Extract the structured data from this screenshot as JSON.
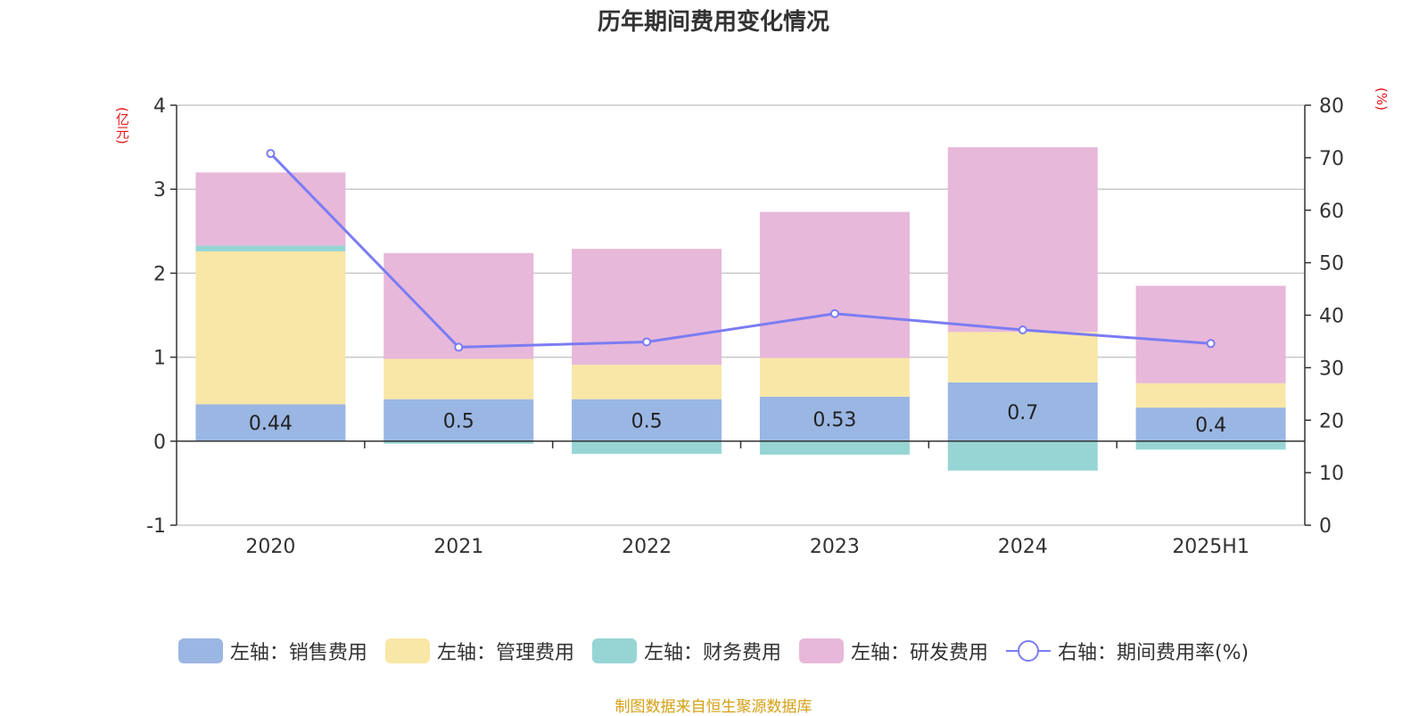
{
  "title": "历年期间费用变化情况",
  "units": {
    "left": "(亿元)",
    "right": "(%)"
  },
  "source": "制图数据来自恒生聚源数据库",
  "colors": {
    "sales": "#9ab6e3",
    "admin": "#f8e7a6",
    "finance": "#97d5d5",
    "rd": "#e7b8da",
    "rate": "#7b7cf3",
    "grid": "#c8c8c8",
    "axis": "#333333",
    "unit": "#e6171b",
    "source": "#d4a016"
  },
  "chart_data": {
    "type": "bar",
    "stacked": true,
    "categories": [
      "2020",
      "2021",
      "2022",
      "2023",
      "2024",
      "2025H1"
    ],
    "left_axis": {
      "min": -1,
      "max": 4,
      "ticks": [
        -1,
        0,
        1,
        2,
        3,
        4
      ]
    },
    "right_axis": {
      "min": 0,
      "max": 80,
      "ticks": [
        0,
        10,
        20,
        30,
        40,
        50,
        60,
        70,
        80
      ]
    },
    "grid": true,
    "legend_position": "bottom",
    "series": [
      {
        "name": "左轴：销售费用",
        "key": "sales",
        "axis": "left",
        "type": "bar",
        "values": [
          0.44,
          0.5,
          0.5,
          0.53,
          0.7,
          0.4
        ],
        "labels": [
          "0.44",
          "0.5",
          "0.5",
          "0.53",
          "0.7",
          "0.4"
        ]
      },
      {
        "name": "左轴：管理费用",
        "key": "admin",
        "axis": "left",
        "type": "bar",
        "values": [
          1.82,
          0.48,
          0.41,
          0.46,
          0.6,
          0.29
        ]
      },
      {
        "name": "左轴：财务费用",
        "key": "finance",
        "axis": "left",
        "type": "bar",
        "values": [
          0.07,
          -0.03,
          -0.15,
          -0.16,
          -0.35,
          -0.1
        ]
      },
      {
        "name": "左轴：研发费用",
        "key": "rd",
        "axis": "left",
        "type": "bar",
        "values": [
          0.87,
          1.26,
          1.38,
          1.74,
          2.2,
          1.16
        ]
      },
      {
        "name": "右轴：期间费用率(%)",
        "key": "rate",
        "axis": "right",
        "type": "line",
        "values": [
          70.8,
          33.9,
          34.9,
          40.3,
          37.2,
          34.6
        ]
      }
    ]
  }
}
